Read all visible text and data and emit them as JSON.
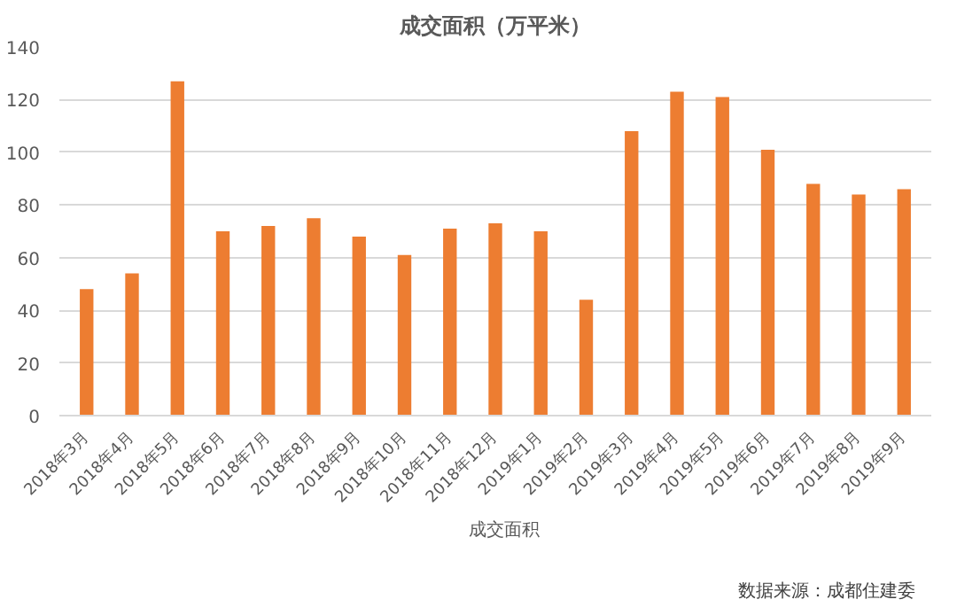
{
  "chart_data": {
    "type": "bar",
    "title": "成交面积（万平米）",
    "categories": [
      "2018年3月",
      "2018年4月",
      "2018年5月",
      "2018年6月",
      "2018年7月",
      "2018年8月",
      "2018年9月",
      "2018年10月",
      "2018年11月",
      "2018年12月",
      "2019年1月",
      "2019年2月",
      "2019年3月",
      "2019年4月",
      "2019年5月",
      "2019年6月",
      "2019年7月",
      "2019年8月",
      "2019年9月"
    ],
    "series": [
      {
        "name": "成交面积",
        "color": "#ed7d31",
        "values": [
          48,
          54,
          127,
          70,
          72,
          75,
          68,
          61,
          71,
          73,
          70,
          44,
          108,
          123,
          121,
          101,
          88,
          84,
          86
        ]
      }
    ],
    "ylim": [
      0,
      140
    ],
    "yticks": [
      0,
      20,
      40,
      60,
      80,
      100,
      120,
      140
    ],
    "grid": "y",
    "legend": "bottom",
    "annotations": [
      "数据来源：成都住建委"
    ]
  }
}
